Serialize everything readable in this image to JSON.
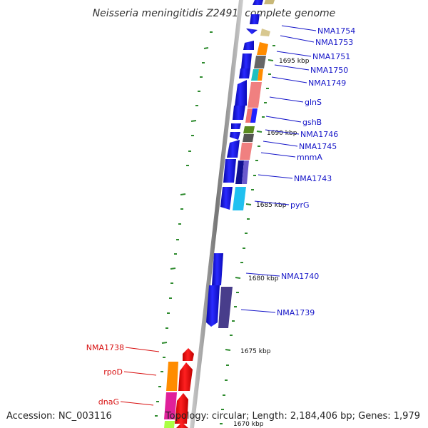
{
  "title": "Neisseria meningitidis Z2491, complete genome",
  "footer": {
    "accession": "Accession: NC_003116",
    "topology": "Topology: circular; Length: 2,184,406 bp; Genes: 1,979"
  },
  "tick_labels": [
    "1695 kbp",
    "1690 kbp",
    "1685 kbp",
    "1680 kbp",
    "1675 kbp",
    "1670 kbp"
  ],
  "gene_labels_right": [
    "NMA1754",
    "NMA1753",
    "NMA1751",
    "NMA1750",
    "NMA1749",
    "glnS",
    "gshB",
    "NMA1746",
    "NMA1745",
    "mnmA",
    "NMA1743",
    "pyrG",
    "NMA1740",
    "NMA1739"
  ],
  "gene_labels_left": [
    "NMA1738",
    "rpoD",
    "dnaG"
  ],
  "colors": {
    "cds": "#1010e8",
    "label_blue": "#1515c8",
    "label_red": "#d81010",
    "backbone": "#8a8a8a",
    "tick": "#2e8b2e"
  }
}
